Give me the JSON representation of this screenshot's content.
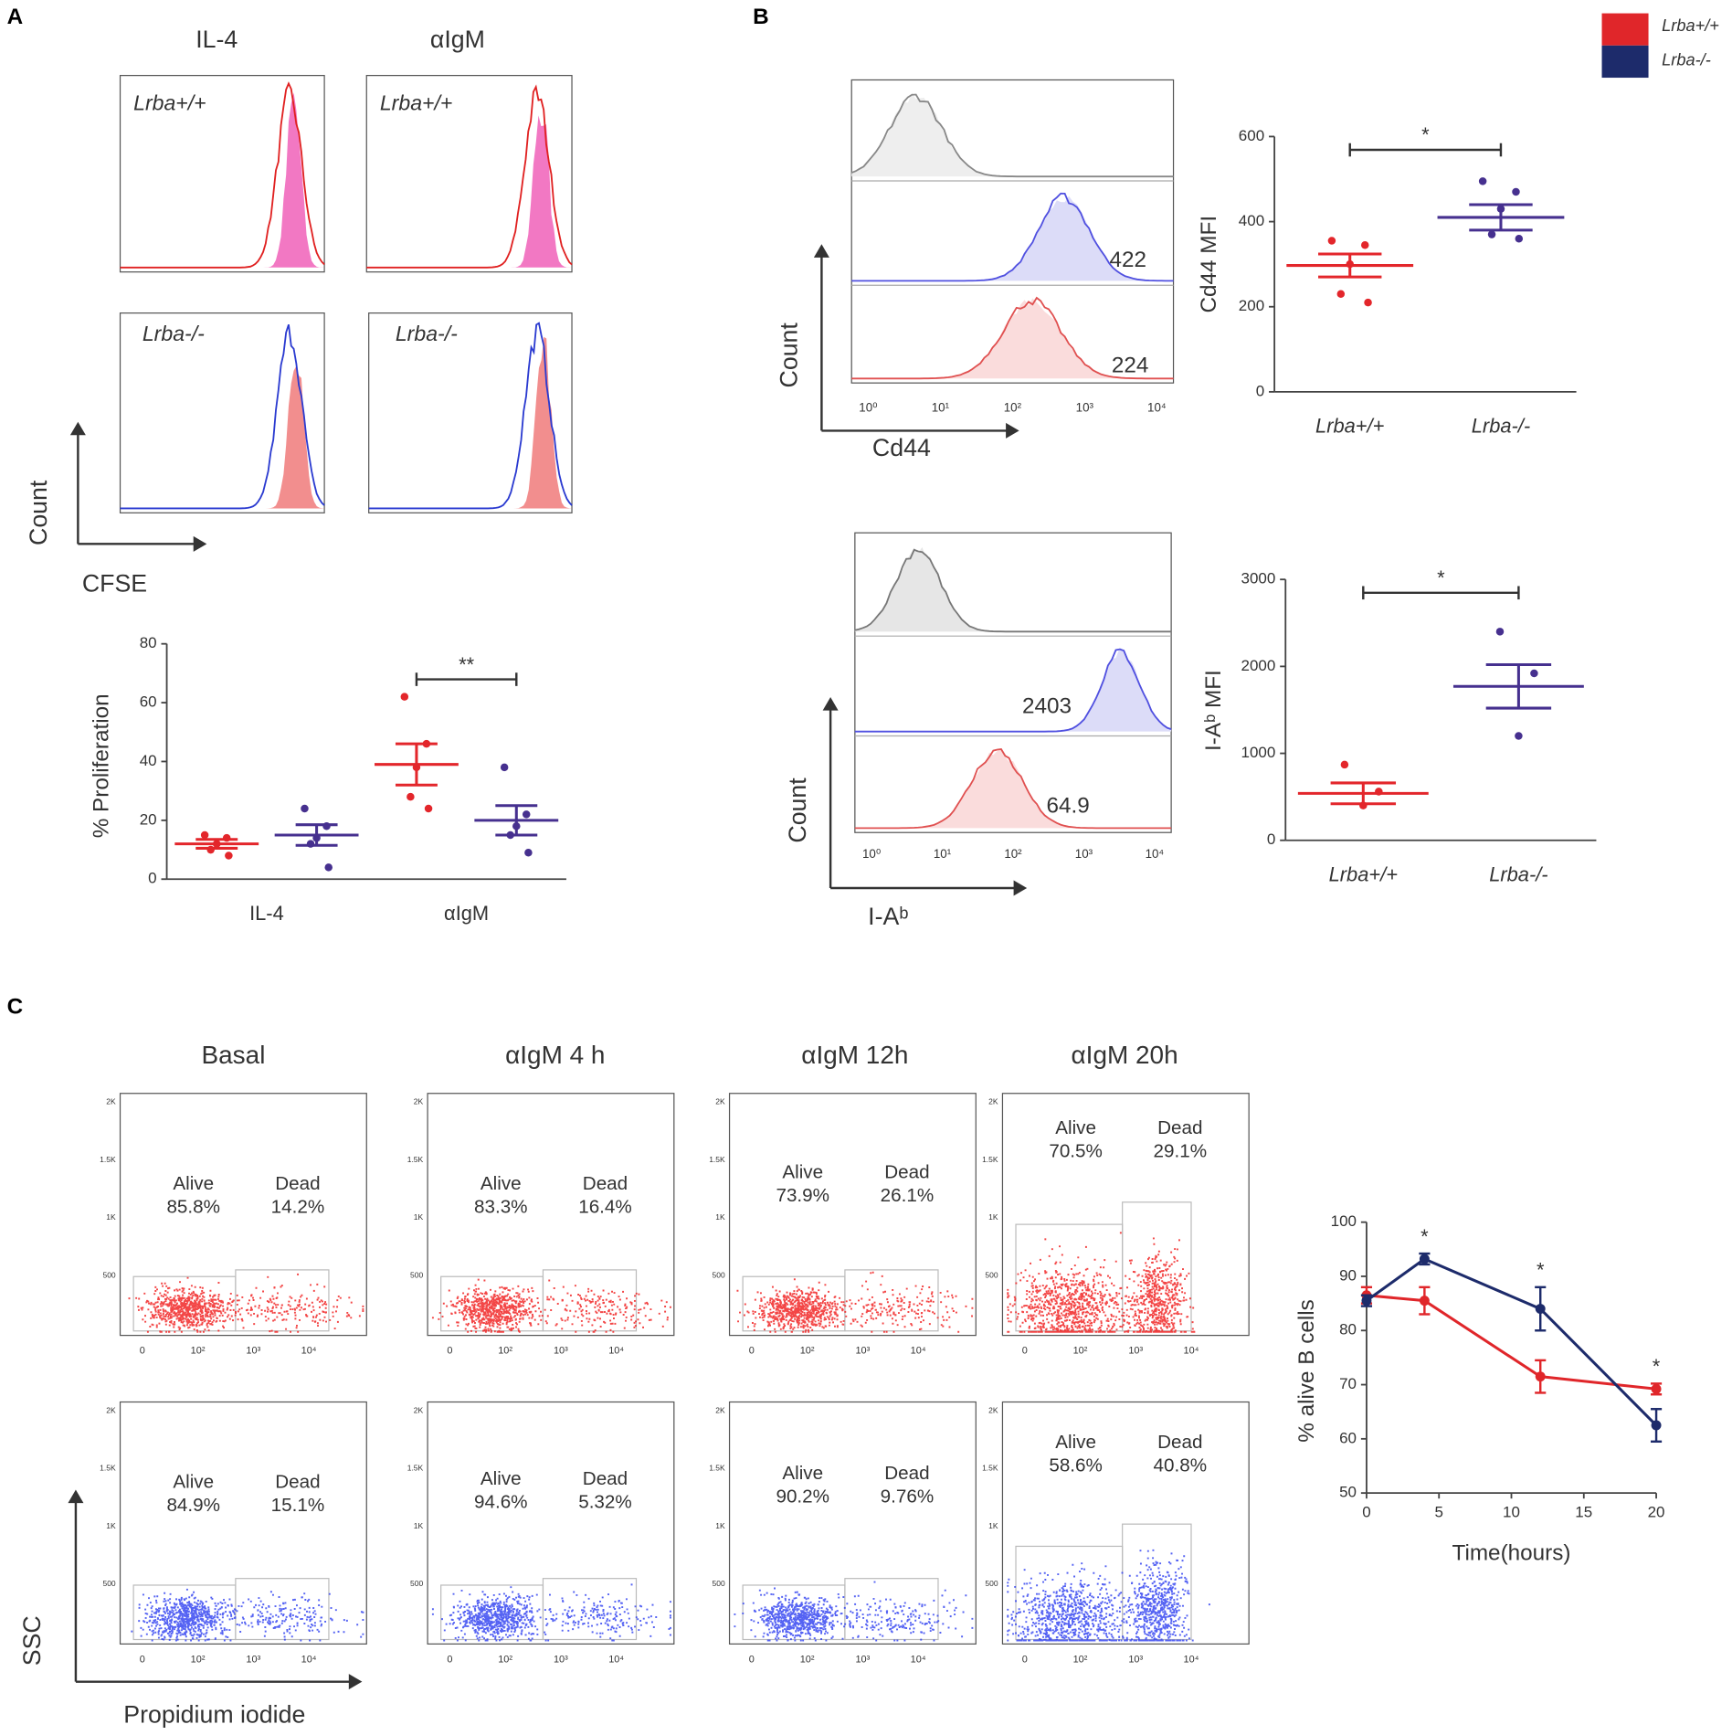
{
  "panels": {
    "A": {
      "label": "A",
      "columns": [
        "IL-4",
        "αIgM"
      ],
      "genotypes": [
        "Lrba+/+",
        "Lrba-/-"
      ],
      "ylabel": "Count",
      "xlabel": "CFSE"
    },
    "B": {
      "label": "B",
      "plots": [
        {
          "ylabel": "Count",
          "xlabel": "Cd44",
          "values": [
            422,
            224
          ]
        },
        {
          "ylabel": "Count",
          "xlabel": "I-Aᵇ",
          "values": [
            2403,
            64.9
          ]
        }
      ],
      "xticks": [
        "10⁰",
        "10¹",
        "10²",
        "10³",
        "10⁴"
      ]
    },
    "C": {
      "label": "C",
      "columns": [
        "Basal",
        "αIgM  4 h",
        "αIgM  12h",
        "αIgM  20h"
      ],
      "alive": "Alive",
      "dead": "Dead",
      "rows": [
        [
          [
            "85.8%",
            "14.2%"
          ],
          [
            "83.3%",
            "16.4%"
          ],
          [
            "73.9%",
            "26.1%"
          ],
          [
            "70.5%",
            "29.1%"
          ]
        ],
        [
          [
            "84.9%",
            "15.1%"
          ],
          [
            "94.6%",
            "5.32%"
          ],
          [
            "90.2%",
            "9.76%"
          ],
          [
            "58.6%",
            "40.8%"
          ]
        ]
      ],
      "yticks": [
        "2K",
        "1.5K",
        "1K",
        "500"
      ],
      "xticks": [
        "0",
        "10²",
        "10³",
        "10⁴"
      ],
      "ylabel": "SSC",
      "xlabel": "Propidium iodide"
    }
  },
  "chart_data": [
    {
      "type": "dot",
      "ylabel": "% Proliferation",
      "categories": [
        "IL-4",
        "αIgM"
      ],
      "series": [
        {
          "color": "#e3262b",
          "values": [
            [
              15,
              14,
              12,
              10,
              8
            ],
            [
              62,
              46,
              38,
              28,
              24
            ]
          ],
          "mean": [
            12,
            39
          ],
          "sem": [
            1.5,
            7
          ]
        },
        {
          "color": "#46308f",
          "values": [
            [
              24,
              18,
              14,
              12,
              4
            ],
            [
              38,
              22,
              18,
              15,
              9
            ]
          ],
          "mean": [
            15,
            20
          ],
          "sem": [
            3.5,
            5
          ]
        }
      ],
      "ylim": [
        0,
        80
      ],
      "yticks": [
        0,
        20,
        40,
        60,
        80
      ],
      "annotation": "**"
    },
    {
      "type": "dot",
      "ylabel": "Cd44 MFI",
      "series": [
        {
          "name": "Lrba+/+",
          "color": "#e3262b",
          "values": [
            355,
            345,
            300,
            230,
            210
          ],
          "mean": 297,
          "sem": 27
        },
        {
          "name": "Lrba-/-",
          "color": "#46308f",
          "values": [
            495,
            470,
            430,
            370,
            360
          ],
          "mean": 410,
          "sem": 30
        }
      ],
      "ylim": [
        0,
        600
      ],
      "yticks": [
        0,
        200,
        400,
        600
      ],
      "annotation": "*"
    },
    {
      "type": "dot",
      "ylabel": "I-Aᵇ MFI",
      "series": [
        {
          "name": "Lrba+/+",
          "color": "#e3262b",
          "values": [
            870,
            560,
            400
          ],
          "mean": 540,
          "sem": 120
        },
        {
          "name": "Lrba-/-",
          "color": "#46308f",
          "values": [
            2400,
            1920,
            1200
          ],
          "mean": 1770,
          "sem": 250
        }
      ],
      "ylim": [
        0,
        3000
      ],
      "yticks": [
        0,
        1000,
        2000,
        3000
      ],
      "annotation": "*"
    },
    {
      "type": "line",
      "xlabel": "Time(hours)",
      "ylabel": "% alive B cells",
      "x": [
        0,
        4,
        12,
        20
      ],
      "series": [
        {
          "name": "Lrba+/+",
          "color": "#e0262a",
          "values": [
            86.5,
            85.5,
            71.5,
            69.2
          ],
          "errors": [
            1.5,
            2.5,
            3,
            1
          ]
        },
        {
          "name": "Lrba-/-",
          "color": "#1d2b6b",
          "values": [
            85.5,
            93.2,
            84,
            62.5
          ],
          "errors": [
            1,
            1,
            4,
            3
          ]
        }
      ],
      "xlim": [
        0,
        20
      ],
      "xticks": [
        0,
        5,
        10,
        15,
        20
      ],
      "ylim": [
        50,
        100
      ],
      "yticks": [
        50,
        60,
        70,
        80,
        90,
        100
      ],
      "annotations": [
        {
          "x": 4,
          "label": "*"
        },
        {
          "x": 12,
          "label": "*"
        },
        {
          "x": 20,
          "label": "*"
        }
      ]
    }
  ]
}
